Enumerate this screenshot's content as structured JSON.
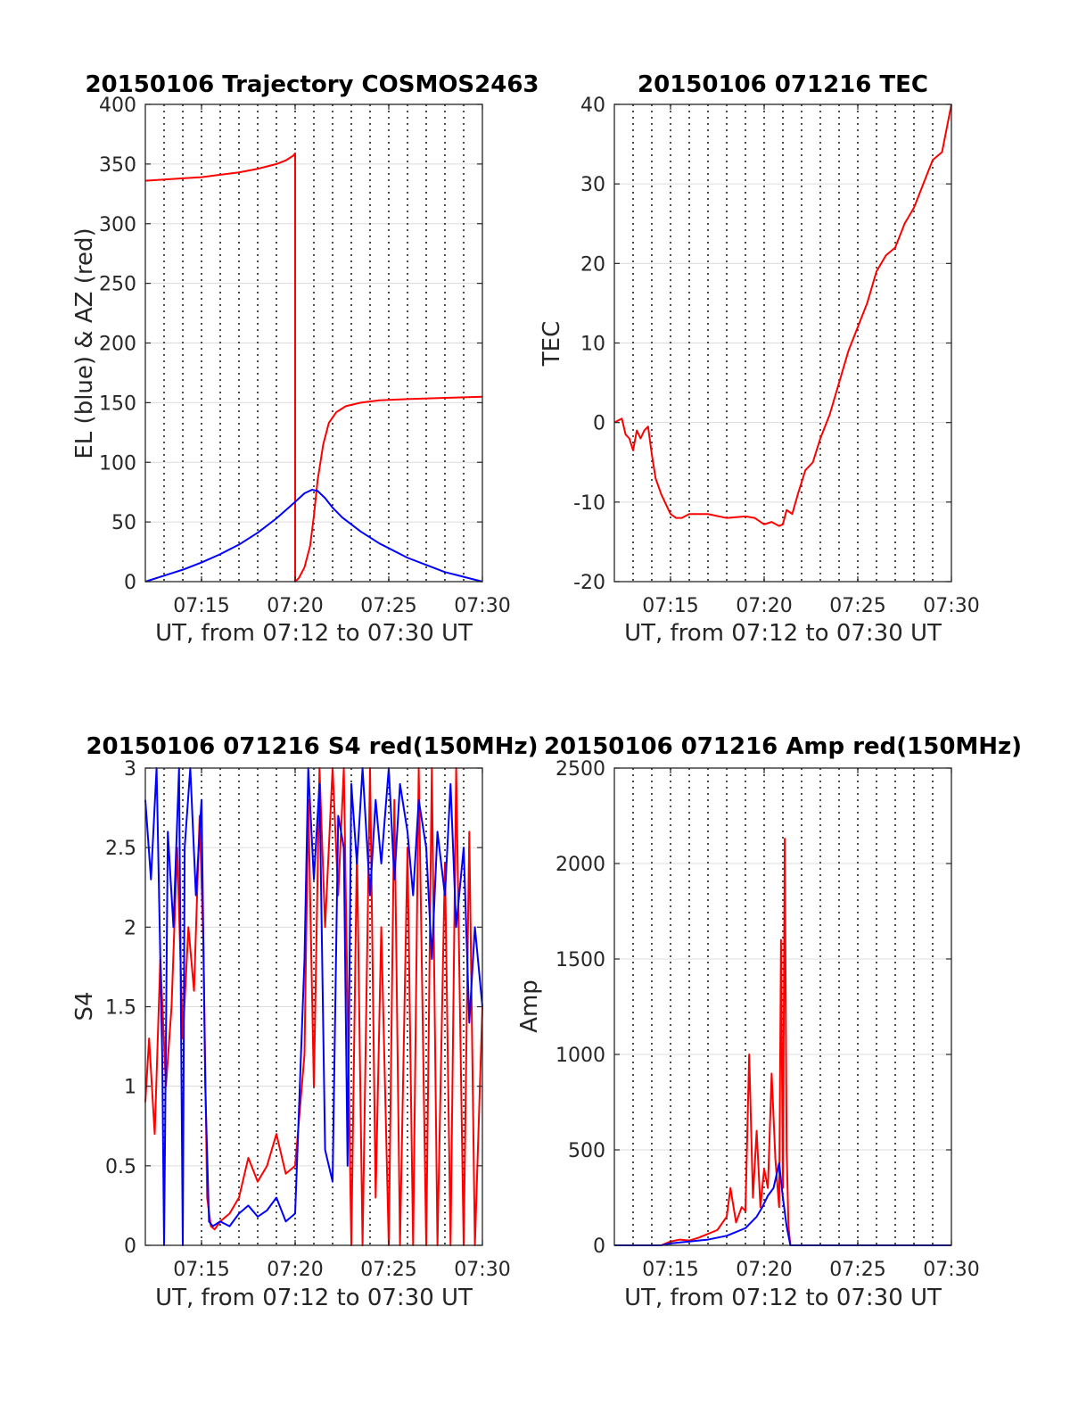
{
  "chart_data": [
    {
      "type": "line",
      "title": "20150106 Trajectory COSMOS2463",
      "xlabel": "UT, from 07:12 to 07:30 UT",
      "ylabel": "EL (blue) & AZ (red)",
      "xlim": [
        0,
        18
      ],
      "ylim": [
        0,
        400
      ],
      "x_tick_values": [
        3,
        8,
        13,
        18
      ],
      "x_tick_labels": [
        "07:15",
        "07:20",
        "07:25",
        "07:30"
      ],
      "y_ticks": [
        0,
        50,
        100,
        150,
        200,
        250,
        300,
        350,
        400
      ],
      "grid": "on",
      "series": [
        {
          "color": "#ff0000",
          "x": [
            0,
            1,
            2,
            3,
            4,
            5,
            6,
            7,
            7.5,
            7.9,
            8.0,
            8.0,
            8.2,
            8.5,
            8.8,
            9.0,
            9.2,
            9.5,
            9.8,
            10.2,
            10.7,
            11.5,
            12.5,
            14,
            16,
            18
          ],
          "y": [
            336,
            337,
            338,
            339,
            341,
            343,
            346,
            350,
            353,
            357,
            359,
            0,
            3,
            12,
            30,
            55,
            85,
            115,
            133,
            142,
            147,
            150,
            152,
            153,
            154,
            155
          ]
        },
        {
          "color": "#0000ff",
          "x": [
            0,
            1,
            2,
            3,
            4,
            5,
            6,
            7,
            7.8,
            8.5,
            8.9,
            9.2,
            9.6,
            10.0,
            10.5,
            11.5,
            12.5,
            14,
            16,
            18
          ],
          "y": [
            0,
            5,
            10,
            16,
            23,
            31,
            41,
            53,
            64,
            74,
            77,
            76,
            70,
            62,
            54,
            42,
            32,
            20,
            8,
            0
          ]
        }
      ]
    },
    {
      "type": "line",
      "title": "20150106 071216 TEC",
      "xlabel": "UT, from 07:12 to 07:30 UT",
      "ylabel": "TEC",
      "xlim": [
        0,
        18
      ],
      "ylim": [
        -20,
        40
      ],
      "x_tick_values": [
        3,
        8,
        13,
        18
      ],
      "x_tick_labels": [
        "07:15",
        "07:20",
        "07:25",
        "07:30"
      ],
      "y_ticks": [
        -20,
        -10,
        0,
        10,
        20,
        30,
        40
      ],
      "grid": "on",
      "series": [
        {
          "color": "#ff0000",
          "x": [
            0,
            0.4,
            0.6,
            0.8,
            1.0,
            1.2,
            1.4,
            1.6,
            1.8,
            2.0,
            2.2,
            2.5,
            2.8,
            3.0,
            3.3,
            3.6,
            4,
            5,
            6,
            7,
            7.5,
            8.0,
            8.4,
            8.8,
            9.0,
            9.2,
            9.5,
            9.8,
            10.2,
            10.6,
            11.0,
            11.5,
            12.0,
            12.5,
            13.0,
            13.5,
            14.0,
            14.5,
            15.0,
            15.5,
            16.0,
            16.5,
            17.0,
            17.5,
            18.0
          ],
          "y": [
            0,
            0.5,
            -1.5,
            -2,
            -3.5,
            -1,
            -2,
            -1,
            -0.5,
            -4,
            -7,
            -9,
            -10.5,
            -11.5,
            -12,
            -12,
            -11.5,
            -11.5,
            -12,
            -11.8,
            -12,
            -12.8,
            -12.5,
            -13,
            -12.8,
            -11,
            -11.5,
            -9,
            -6,
            -5,
            -2,
            1,
            5,
            9,
            12,
            15,
            19,
            21,
            22,
            25,
            27,
            30,
            33,
            34,
            40
          ]
        }
      ]
    },
    {
      "type": "line",
      "title": "20150106 071216 S4 red(150MHz)",
      "xlabel": "UT, from 07:12 to 07:30 UT",
      "ylabel": "S4",
      "xlim": [
        0,
        18
      ],
      "ylim": [
        0,
        3
      ],
      "x_tick_values": [
        3,
        8,
        13,
        18
      ],
      "x_tick_labels": [
        "07:15",
        "07:20",
        "07:25",
        "07:30"
      ],
      "y_ticks": [
        0,
        0.5,
        1,
        1.5,
        2,
        2.5,
        3
      ],
      "grid": "on",
      "series": [
        {
          "color": "#ff0000",
          "x": [
            0,
            0.2,
            0.5,
            0.8,
            1.1,
            1.4,
            1.7,
            2.0,
            2.3,
            2.6,
            2.9,
            3.1,
            3.3,
            3.5,
            3.7,
            4.0,
            4.5,
            5.0,
            5.5,
            6.0,
            6.5,
            7.0,
            7.5,
            8.0,
            8.5,
            8.7,
            9.0,
            9.3,
            9.6,
            10.0,
            10.3,
            10.6,
            11.0,
            11.3,
            11.6,
            12.0,
            12.3,
            12.6,
            13.0,
            13.3,
            13.6,
            14.0,
            14.3,
            14.6,
            15.0,
            15.3,
            15.6,
            16.0,
            16.3,
            16.6,
            17.0,
            17.3,
            17.6,
            18.0
          ],
          "y": [
            0.9,
            1.3,
            0.7,
            1.8,
            1.0,
            1.5,
            2.5,
            1.3,
            2.0,
            1.6,
            2.7,
            1.9,
            0.3,
            0.12,
            0.1,
            0.15,
            0.2,
            0.3,
            0.55,
            0.4,
            0.5,
            0.7,
            0.45,
            0.5,
            1.2,
            2.8,
            1.0,
            3.0,
            2.0,
            3.0,
            2.2,
            3.0,
            0.0,
            2.5,
            0.0,
            3.0,
            0.3,
            2.0,
            0.0,
            2.8,
            0.0,
            2.5,
            0.0,
            3.0,
            0.0,
            3.0,
            0.0,
            2.4,
            0.0,
            3.0,
            0.0,
            2.6,
            0.0,
            1.5
          ]
        },
        {
          "color": "#0000ff",
          "x": [
            0,
            0.3,
            0.6,
            0.9,
            1.0,
            1.2,
            1.5,
            1.8,
            2.0,
            2.1,
            2.4,
            2.7,
            3.0,
            3.2,
            3.4,
            3.6,
            4.0,
            4.5,
            5.0,
            5.5,
            6.0,
            6.5,
            7.0,
            7.5,
            8.0,
            8.5,
            8.7,
            9.0,
            9.3,
            9.6,
            10.0,
            10.3,
            10.6,
            10.8,
            11.0,
            11.3,
            11.6,
            12.0,
            12.3,
            12.6,
            13.0,
            13.3,
            13.6,
            14.0,
            14.3,
            14.6,
            15.0,
            15.3,
            15.6,
            16.0,
            16.3,
            16.6,
            17.0,
            17.3,
            17.6,
            18.0
          ],
          "y": [
            2.8,
            2.3,
            3.0,
            1.2,
            0.0,
            2.6,
            2.0,
            3.0,
            0.0,
            2.5,
            3.0,
            2.2,
            2.8,
            1.0,
            0.15,
            0.12,
            0.15,
            0.12,
            0.2,
            0.25,
            0.18,
            0.22,
            0.3,
            0.15,
            0.2,
            1.8,
            3.0,
            2.3,
            2.9,
            0.6,
            0.4,
            2.7,
            2.5,
            0.5,
            2.9,
            2.4,
            3.0,
            2.2,
            2.8,
            2.4,
            3.0,
            2.3,
            2.9,
            2.6,
            2.2,
            2.8,
            2.5,
            1.8,
            2.6,
            2.2,
            2.9,
            2.0,
            2.5,
            1.4,
            2.0,
            1.5
          ]
        }
      ]
    },
    {
      "type": "line",
      "title": "20150106 071216 Amp red(150MHz)",
      "xlabel": "UT, from 07:12 to 07:30 UT",
      "ylabel": "Amp",
      "xlim": [
        0,
        18
      ],
      "ylim": [
        0,
        2500
      ],
      "x_tick_values": [
        3,
        8,
        13,
        18
      ],
      "x_tick_labels": [
        "07:15",
        "07:20",
        "07:25",
        "07:30"
      ],
      "y_ticks": [
        0,
        500,
        1000,
        1500,
        2000,
        2500
      ],
      "grid": "on",
      "series": [
        {
          "color": "#ff0000",
          "x": [
            0,
            2.5,
            3.0,
            3.5,
            4.0,
            4.5,
            5.0,
            5.5,
            6.0,
            6.2,
            6.5,
            6.8,
            7.0,
            7.2,
            7.4,
            7.6,
            7.8,
            8.0,
            8.2,
            8.4,
            8.6,
            8.8,
            8.9,
            9.0,
            9.1,
            9.2,
            9.3,
            9.4,
            10,
            12,
            14,
            16,
            18
          ],
          "y": [
            0,
            0,
            20,
            30,
            25,
            40,
            60,
            80,
            150,
            300,
            120,
            200,
            180,
            1000,
            250,
            600,
            200,
            400,
            300,
            900,
            450,
            200,
            1600,
            300,
            2130,
            500,
            100,
            0,
            0,
            0,
            0,
            0,
            0
          ]
        },
        {
          "color": "#0000ff",
          "x": [
            0,
            2.5,
            3.0,
            3.5,
            4.0,
            4.5,
            5.0,
            5.5,
            6.0,
            6.5,
            7.0,
            7.3,
            7.6,
            7.9,
            8.2,
            8.5,
            8.8,
            9.0,
            9.2,
            9.4,
            10,
            12,
            14,
            16,
            18
          ],
          "y": [
            0,
            0,
            10,
            15,
            20,
            25,
            30,
            40,
            50,
            70,
            90,
            120,
            150,
            200,
            260,
            300,
            430,
            250,
            100,
            0,
            0,
            0,
            0,
            0,
            0
          ]
        }
      ]
    }
  ]
}
